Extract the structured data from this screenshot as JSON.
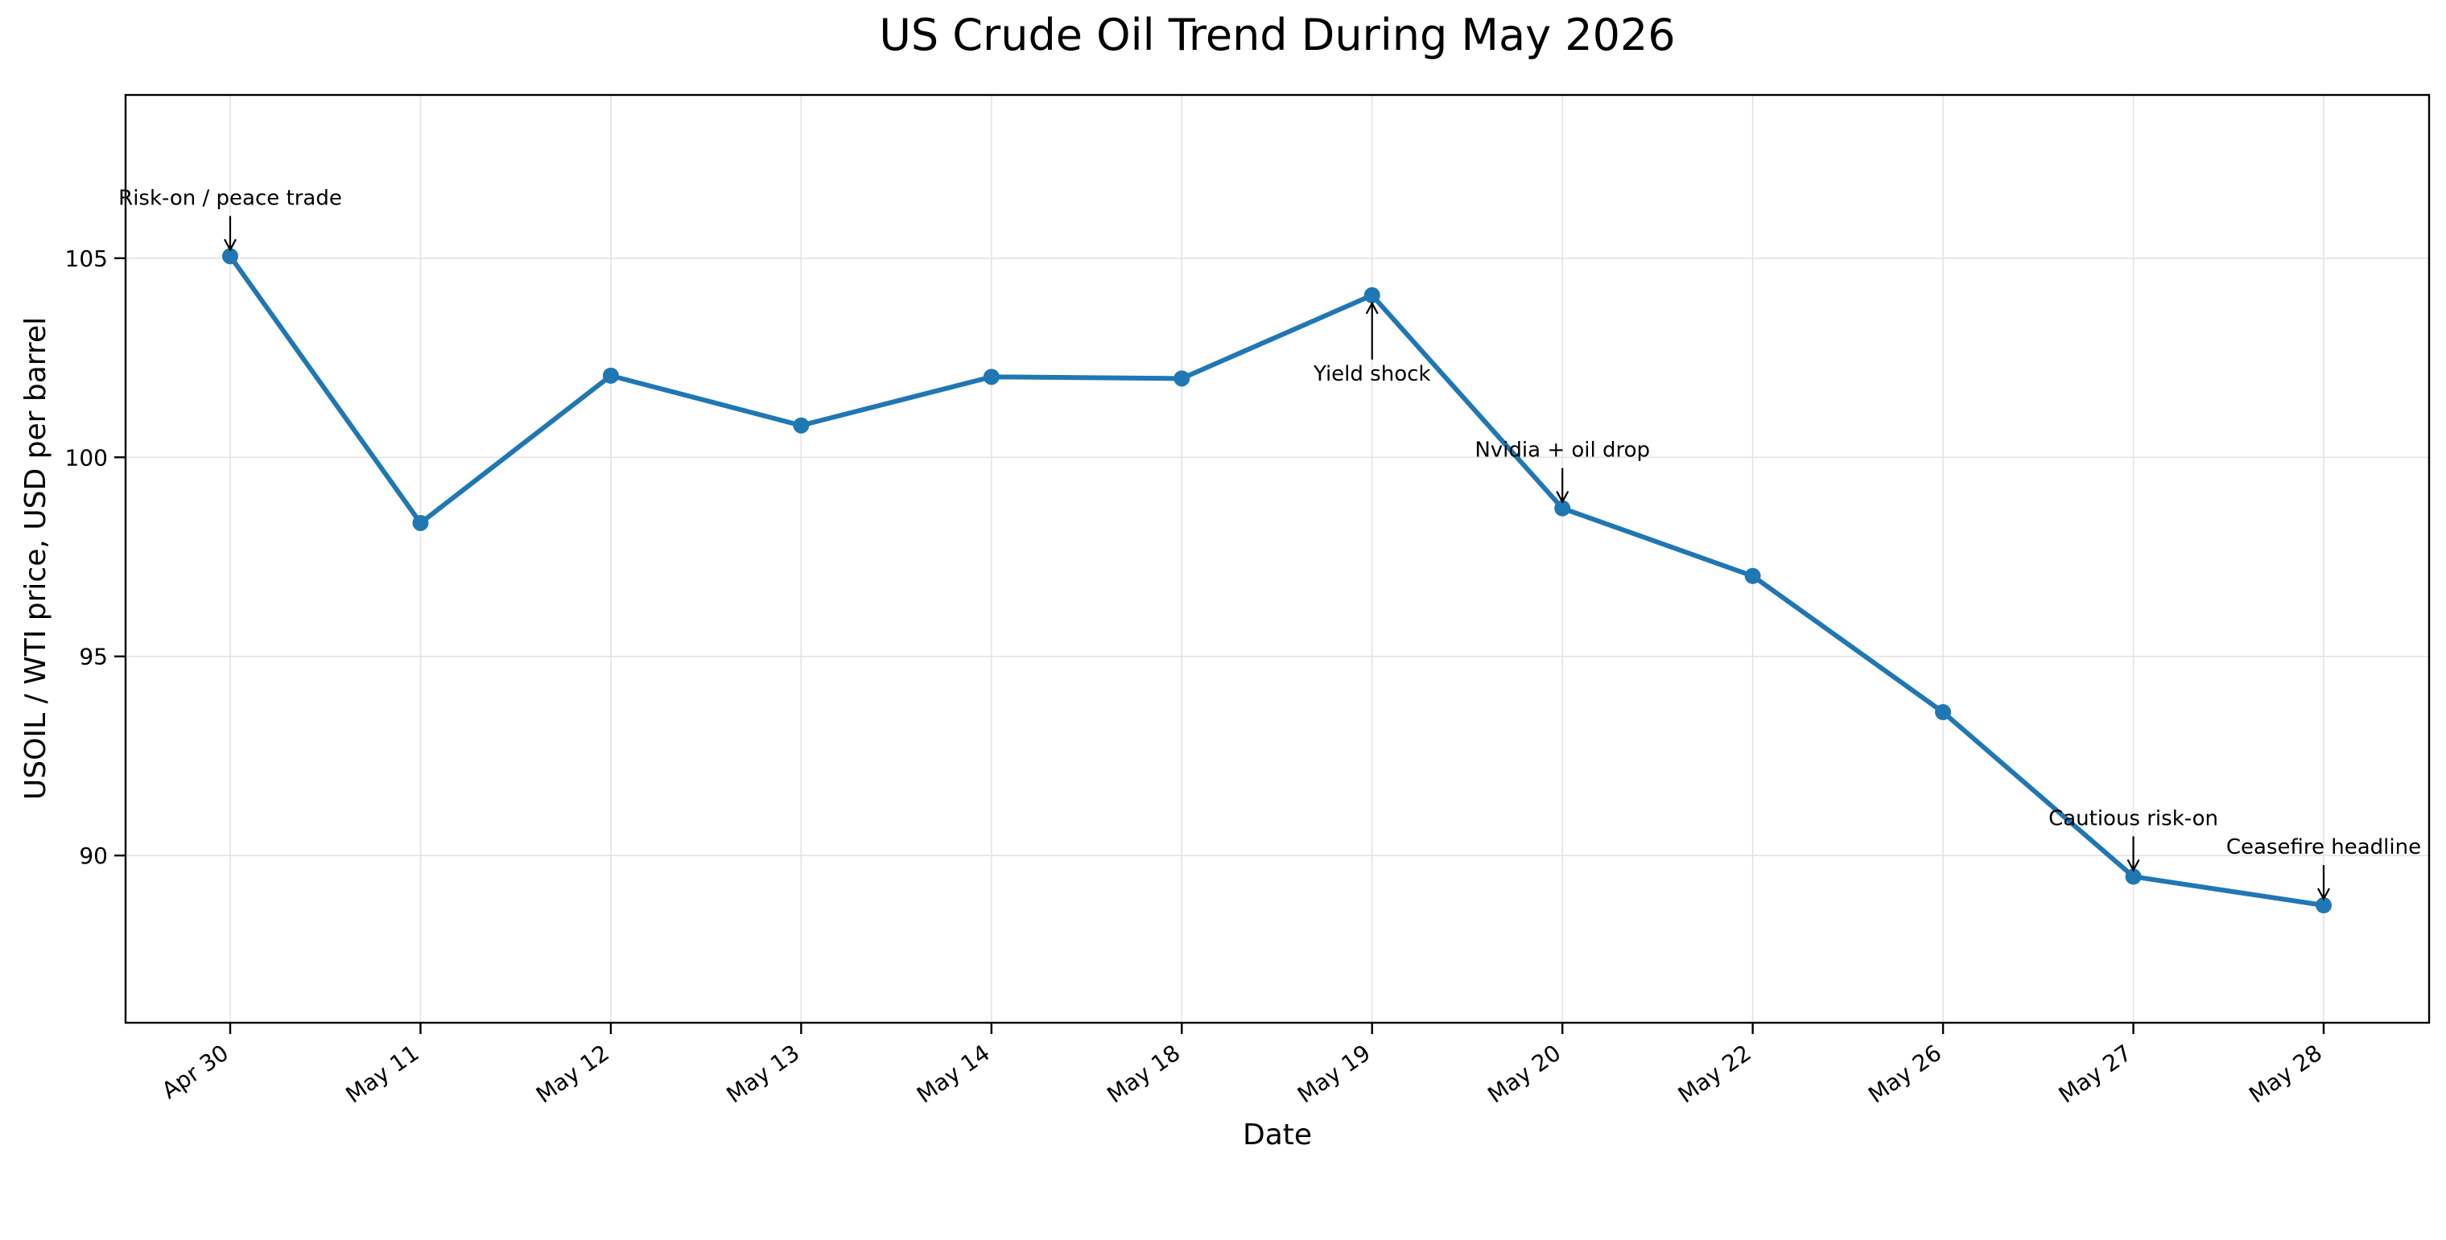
{
  "chart_data": {
    "type": "line",
    "title": "US Crude Oil Trend During May 2026",
    "xlabel": "Date",
    "ylabel": "USOIL / WTI price, USD per barrel",
    "categories": [
      "Apr 30",
      "May 11",
      "May 12",
      "May 13",
      "May 14",
      "May 18",
      "May 19",
      "May 20",
      "May 22",
      "May 26",
      "May 27",
      "May 28"
    ],
    "series": [
      {
        "values": [
          105.05,
          98.35,
          102.05,
          100.8,
          102.02,
          101.98,
          104.07,
          98.72,
          97.02,
          93.6,
          89.47,
          88.75
        ],
        "color": "#1f77b4"
      }
    ],
    "ylim": [
      85.8,
      109.1
    ],
    "yticks": [
      90,
      95,
      100,
      105
    ],
    "grid": true,
    "annotations": [
      {
        "category": "Apr 30",
        "text": "Risk-on / peace trade",
        "position": "above"
      },
      {
        "category": "May 19",
        "text": "Yield shock",
        "position": "below"
      },
      {
        "category": "May 20",
        "text": "Nvidia + oil drop",
        "position": "above"
      },
      {
        "category": "May 27",
        "text": "Cautious risk-on",
        "position": "above"
      },
      {
        "category": "May 28",
        "text": "Ceasefire headline",
        "position": "above"
      }
    ]
  }
}
